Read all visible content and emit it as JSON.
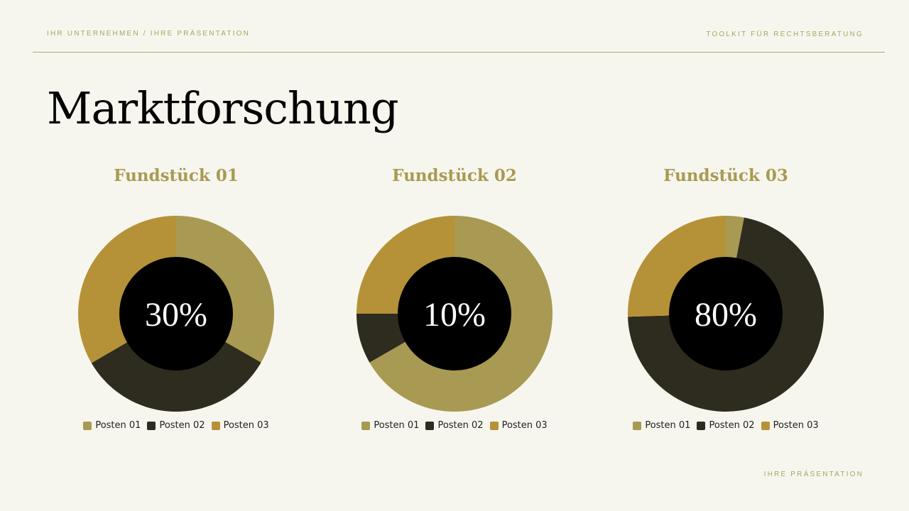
{
  "header": {
    "left": "IHR UNTERNEHMEN / IHRE PRÄSENTATION",
    "right": "TOOLKIT FÜR RECHTSBERATUNG"
  },
  "title": "Marktforschung",
  "footer": "IHRE PRÄSENTATION",
  "colors": {
    "Posten 01": "#a89a52",
    "Posten 02": "#2e2c1e",
    "Posten 03": "#b59238",
    "center": "#000000"
  },
  "chart_data": [
    {
      "type": "pie",
      "title": "Fundstück 01",
      "center_label": "30%",
      "categories": [
        "Posten 01",
        "Posten 02",
        "Posten 03"
      ],
      "values": [
        33.3,
        33.3,
        33.4
      ]
    },
    {
      "type": "pie",
      "title": "Fundstück 02",
      "center_label": "10%",
      "categories": [
        "Posten 01",
        "Posten 02",
        "Posten 03"
      ],
      "values": [
        66.7,
        8.3,
        25
      ]
    },
    {
      "type": "pie",
      "title": "Fundstück 03",
      "center_label": "80%",
      "categories": [
        "Posten 01",
        "Posten 02",
        "Posten 03"
      ],
      "values": [
        3,
        71.5,
        25.5
      ]
    }
  ]
}
